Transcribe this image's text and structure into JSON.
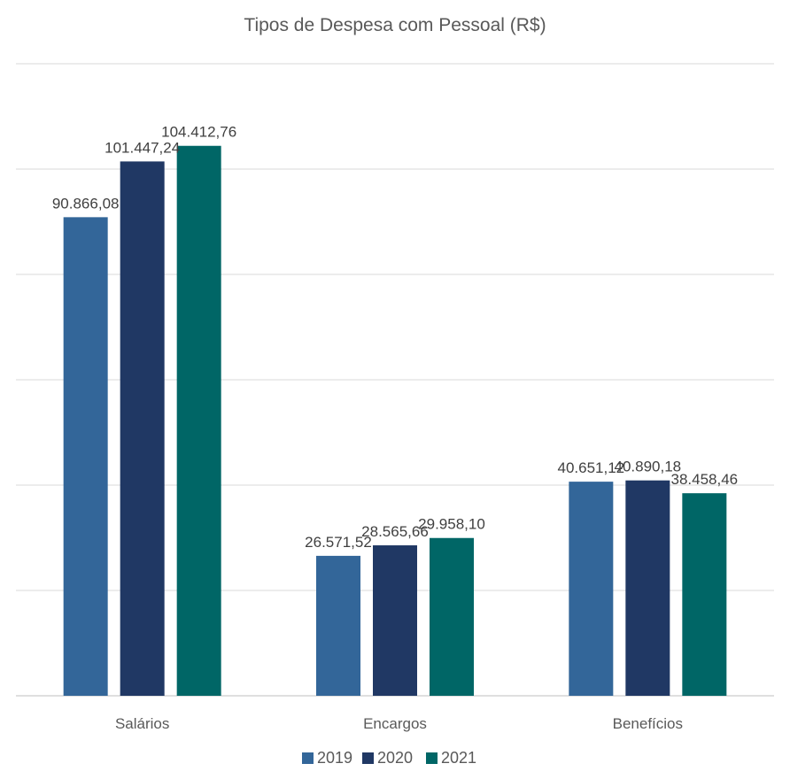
{
  "chart_data": {
    "type": "bar",
    "title": "Tipos de Despesa com Pessoal (R$)",
    "categories": [
      "Salários",
      "Encargos",
      "Benefícios"
    ],
    "series": [
      {
        "name": "2019",
        "color": "#336699",
        "values": [
          90866.08,
          26571.52,
          40651.12
        ],
        "labels": [
          "90.866,08",
          "26.571,52",
          "40.651,12"
        ]
      },
      {
        "name": "2020",
        "color": "#203864",
        "values": [
          101447.24,
          28565.66,
          40890.18
        ],
        "labels": [
          "101.447,24",
          "28.565,66",
          "40.890,18"
        ]
      },
      {
        "name": "2021",
        "color": "#006666",
        "values": [
          104412.76,
          29958.1,
          38458.46
        ],
        "labels": [
          "104.412,76",
          "29.958,10",
          "38.458,46"
        ]
      }
    ],
    "ylim": [
      0,
      120000
    ],
    "grid": true,
    "legend_position": "bottom"
  }
}
